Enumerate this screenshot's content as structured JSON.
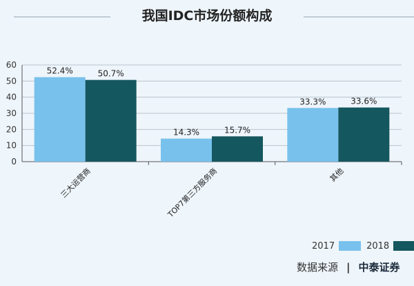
{
  "page": {
    "title": "我国IDC市场份额构成",
    "source_label": "数据来源",
    "source_sep": "|",
    "source_brand": "中泰证券"
  },
  "colors": {
    "background": "#eef5fb",
    "series_2017": "#78c1ec",
    "series_2018": "#15575e",
    "grid": "#b9c3cc",
    "axis": "#555555"
  },
  "chart_data": {
    "type": "bar",
    "title": "我国IDC市场份额构成",
    "categories": [
      "三大运营商",
      "TOP7第三方服务商",
      "其他"
    ],
    "series": [
      {
        "name": "2017",
        "values": [
          52.4,
          14.3,
          33.3
        ],
        "labels": [
          "52.4%",
          "14.3%",
          "33.3%"
        ]
      },
      {
        "name": "2018",
        "values": [
          50.7,
          15.7,
          33.6
        ],
        "labels": [
          "50.7%",
          "15.7%",
          "33.6%"
        ]
      }
    ],
    "yticks": [
      0,
      10,
      20,
      30,
      40,
      50,
      60
    ],
    "ylim": [
      0,
      60
    ],
    "grid": true,
    "legend_position": "bottom-right",
    "xlabel": "",
    "ylabel": ""
  }
}
